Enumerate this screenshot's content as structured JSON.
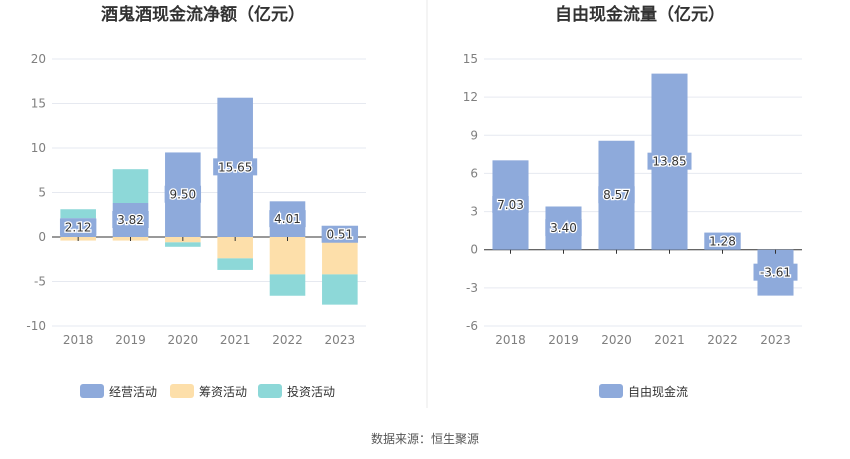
{
  "source_text": "数据来源：恒生聚源",
  "chart_data": [
    {
      "type": "bar",
      "stacked": true,
      "title": "酒鬼酒现金流净额（亿元）",
      "categories": [
        "2018",
        "2019",
        "2020",
        "2021",
        "2022",
        "2023"
      ],
      "ylim": [
        -10,
        20
      ],
      "yticks": [
        -10,
        -5,
        0,
        5,
        10,
        15,
        20
      ],
      "grid": true,
      "legend_position": "bottom",
      "series": [
        {
          "name": "经营活动",
          "color": "#8eaadb",
          "values": [
            2.12,
            3.82,
            9.5,
            15.65,
            4.01,
            0.51
          ],
          "labels": [
            "2.12",
            "3.82",
            "9.50",
            "15.65",
            "4.01",
            "0.51"
          ]
        },
        {
          "name": "筹资活动",
          "color": "#fddfaa",
          "values": [
            -0.4,
            -0.4,
            -0.6,
            -2.4,
            -4.2,
            -4.2
          ]
        },
        {
          "name": "投资活动",
          "color": "#8dd8d8",
          "values": [
            1.0,
            3.8,
            -0.5,
            -1.3,
            -2.4,
            -3.4
          ]
        }
      ]
    },
    {
      "type": "bar",
      "title": "自由现金流量（亿元）",
      "categories": [
        "2018",
        "2019",
        "2020",
        "2021",
        "2022",
        "2023"
      ],
      "ylim": [
        -6,
        15
      ],
      "yticks": [
        -6,
        -3,
        0,
        3,
        6,
        9,
        12,
        15
      ],
      "grid": true,
      "legend_position": "bottom",
      "series": [
        {
          "name": "自由现金流",
          "color": "#8eaadb",
          "values": [
            7.03,
            3.4,
            8.57,
            13.85,
            1.28,
            -3.61
          ],
          "labels": [
            "7.03",
            "3.40",
            "8.57",
            "13.85",
            "1.28",
            "-3.61"
          ]
        }
      ]
    }
  ]
}
